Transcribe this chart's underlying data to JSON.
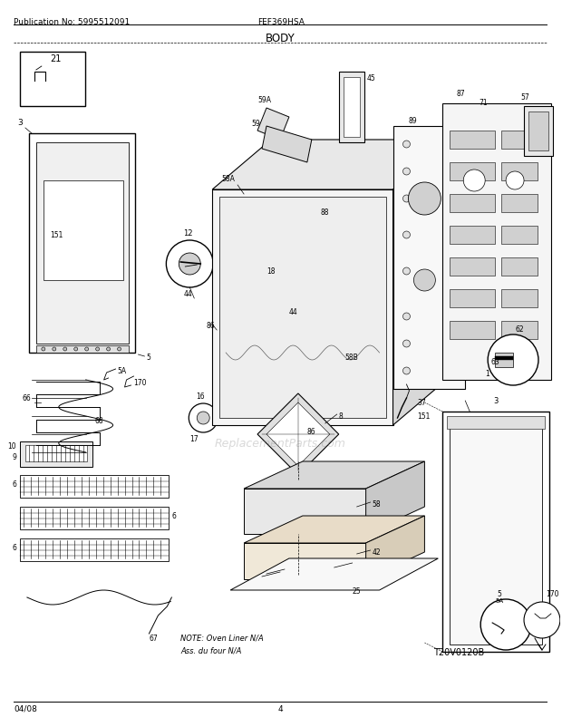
{
  "title": "BODY",
  "pub_no": "Publication No: 5995512091",
  "model": "FEF369HSA",
  "date": "04/08",
  "page": "4",
  "ref_code": "T20V0120B",
  "note_line1": "NOTE: Oven Liner N/A",
  "note_line2": "Ass. du four N/A",
  "bg_color": "#ffffff",
  "watermark": "ReplacementParts.com"
}
